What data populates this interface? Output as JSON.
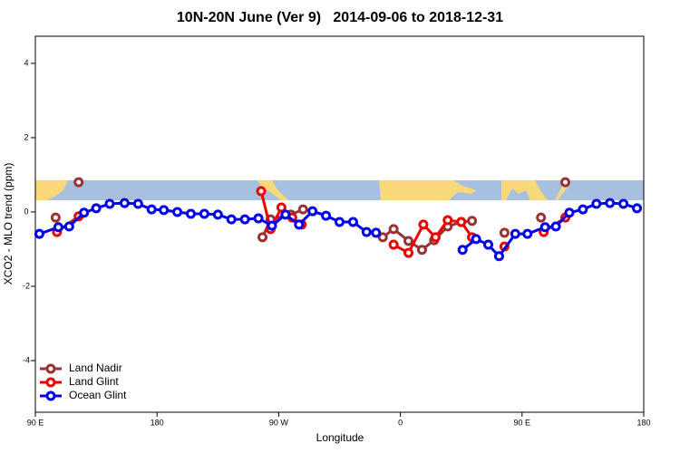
{
  "chart_data": {
    "type": "line",
    "title": "10N-20N June (Ver 9)   2014-09-06 to 2018-12-31",
    "xlabel": "Longitude",
    "ylabel": "XCO2 - MLO trend (ppm)",
    "xlim": [
      90,
      540
    ],
    "ylim": [
      -5.39,
      4.73
    ],
    "xticks": [
      {
        "value": 90,
        "label": "90 E"
      },
      180,
      {
        "value": 270,
        "label": "90 W"
      },
      {
        "value": 360,
        "label": "0"
      },
      {
        "value": 450,
        "label": "90 E"
      },
      {
        "value": 540,
        "label": "180"
      }
    ],
    "yticks": [
      -4,
      -2,
      0,
      2,
      4
    ],
    "legend": "bottom-left",
    "series": [
      {
        "name": "Land Nadir",
        "color": "#993333",
        "x": [
          105,
          null,
          122,
          null,
          258,
          264,
          279,
          288,
          null,
          347,
          355,
          366,
          376,
          385,
          395,
          405,
          413,
          null,
          437,
          null,
          464,
          null,
          482
        ],
        "values": [
          -0.15,
          null,
          0.8,
          null,
          -0.68,
          -0.2,
          -0.07,
          0.07,
          null,
          -0.68,
          -0.46,
          -0.78,
          -1.02,
          -0.76,
          -0.39,
          -0.27,
          -0.24,
          null,
          -0.56,
          null,
          -0.15,
          null,
          0.8
        ]
      },
      {
        "name": "Land Glint",
        "color": "#ee0000",
        "x": [
          106,
          122,
          null,
          257,
          264,
          272,
          280,
          287,
          null,
          355,
          366,
          377,
          386,
          395,
          405,
          413,
          null,
          437,
          null,
          466,
          482
        ],
        "values": [
          -0.54,
          -0.12,
          null,
          0.56,
          -0.46,
          0.12,
          -0.15,
          -0.34,
          null,
          -0.88,
          -1.1,
          -0.34,
          -0.68,
          -0.22,
          -0.27,
          -0.68,
          null,
          -0.93,
          null,
          -0.54,
          -0.15
        ]
      },
      {
        "name": "Ocean Glint",
        "color": "#0000ee",
        "x": [
          93,
          107,
          115,
          126,
          135,
          145,
          156,
          166,
          176,
          185,
          195,
          205,
          215,
          225,
          235,
          245,
          255,
          265,
          275,
          285,
          295,
          305,
          315,
          325,
          335,
          342,
          null,
          406,
          416,
          425,
          433,
          445,
          454,
          467,
          475,
          485,
          495,
          505,
          515,
          525,
          535
        ],
        "values": [
          -0.59,
          -0.41,
          -0.39,
          -0.02,
          0.1,
          0.22,
          0.24,
          0.22,
          0.07,
          0.05,
          0,
          -0.05,
          -0.05,
          -0.07,
          -0.2,
          -0.2,
          -0.17,
          -0.37,
          -0.07,
          -0.34,
          0.02,
          -0.1,
          -0.27,
          -0.27,
          -0.54,
          -0.56,
          null,
          -1.02,
          -0.73,
          -0.88,
          -1.19,
          -0.59,
          -0.59,
          -0.41,
          -0.39,
          -0.02,
          0.07,
          0.22,
          0.24,
          0.22,
          0.1
        ]
      }
    ]
  }
}
